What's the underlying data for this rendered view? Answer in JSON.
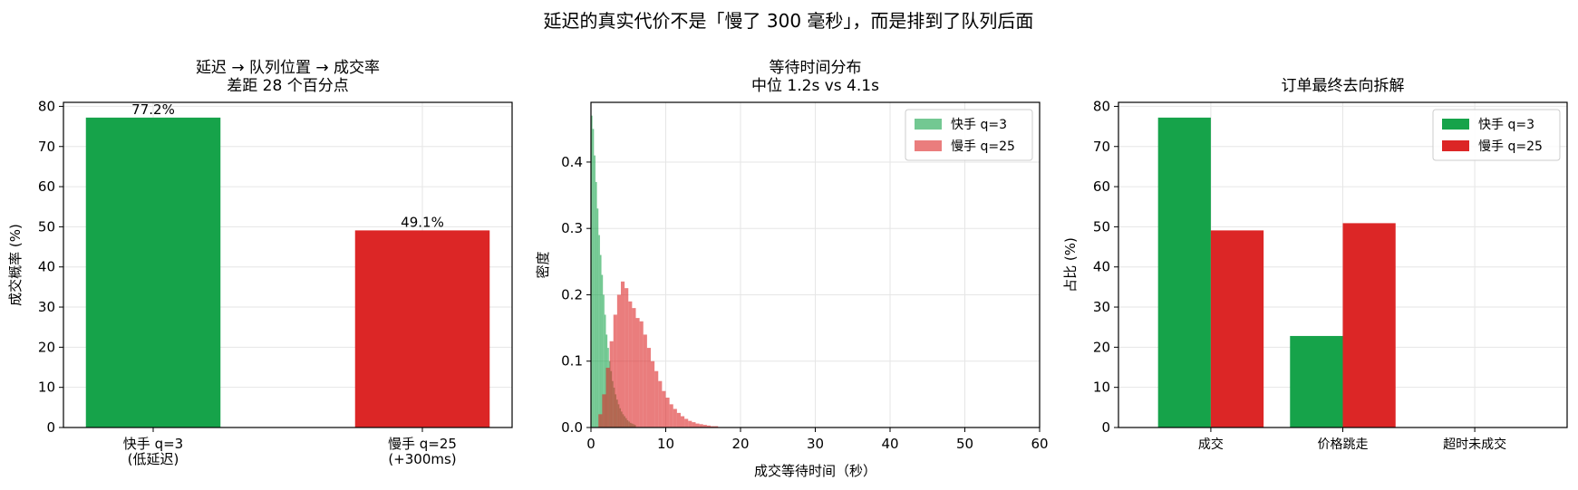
{
  "figure": {
    "suptitle": "延迟的真实代价不是「慢了 300 毫秒」，而是排到了队列后面"
  },
  "chart_data": [
    {
      "type": "bar",
      "title": "延迟 → 队列位置 → 成交率",
      "subtitle": "差距 28 个百分点",
      "xlabel": "",
      "ylabel": "成交概率 (%)",
      "ylim": [
        0,
        81
      ],
      "yticks": [
        0,
        10,
        20,
        30,
        40,
        50,
        60,
        70,
        80
      ],
      "categories": [
        [
          "快手 q=3",
          "(低延迟)"
        ],
        [
          "慢手 q=25",
          "(+300ms)"
        ]
      ],
      "values": [
        77.2,
        49.1
      ],
      "data_labels": [
        "77.2%",
        "49.1%"
      ],
      "colors": [
        "#16a34a",
        "#dc2626"
      ],
      "grid": true
    },
    {
      "type": "histogram",
      "title": "等待时间分布",
      "subtitle": "中位 1.2s vs 4.1s",
      "xlabel": "成交等待时间（秒）",
      "ylabel": "密度",
      "xlim": [
        0,
        60
      ],
      "ylim": [
        0,
        0.49
      ],
      "xticks": [
        0,
        10,
        20,
        30,
        40,
        50,
        60
      ],
      "yticks": [
        "0.0",
        "0.1",
        "0.2",
        "0.3",
        "0.4"
      ],
      "legend_position": "top-right",
      "grid": true,
      "series": [
        {
          "name": "快手 q=3",
          "color": "#16a34a",
          "opacity": 0.6,
          "bin_width": 0.2,
          "density": [
            0.47,
            0.45,
            0.41,
            0.37,
            0.33,
            0.29,
            0.26,
            0.23,
            0.2,
            0.17,
            0.14,
            0.12,
            0.1,
            0.085,
            0.07,
            0.06,
            0.05,
            0.042,
            0.035,
            0.029,
            0.024,
            0.02,
            0.017,
            0.014,
            0.011,
            0.009,
            0.007,
            0.006,
            0.005,
            0.004
          ]
        },
        {
          "name": "慢手 q=25",
          "color": "#dc2626",
          "opacity": 0.6,
          "bin_width": 0.5,
          "x_start": 1.0,
          "density": [
            0.02,
            0.05,
            0.09,
            0.13,
            0.17,
            0.2,
            0.22,
            0.21,
            0.19,
            0.18,
            0.165,
            0.16,
            0.14,
            0.12,
            0.1,
            0.085,
            0.07,
            0.055,
            0.045,
            0.035,
            0.028,
            0.022,
            0.017,
            0.013,
            0.01,
            0.008,
            0.006,
            0.005,
            0.004,
            0.003,
            0.002,
            0.002
          ]
        }
      ]
    },
    {
      "type": "bar",
      "title": "订单最终去向拆解",
      "xlabel": "",
      "ylabel": "占比 (%)",
      "ylim": [
        0,
        81
      ],
      "yticks": [
        0,
        10,
        20,
        30,
        40,
        50,
        60,
        70,
        80
      ],
      "categories": [
        "成交",
        "价格跳走",
        "超时未成交"
      ],
      "legend_position": "top-right",
      "grid": true,
      "series": [
        {
          "name": "快手 q=3",
          "color": "#16a34a",
          "values": [
            77.2,
            22.8,
            0
          ]
        },
        {
          "name": "慢手 q=25",
          "color": "#dc2626",
          "values": [
            49.1,
            50.9,
            0
          ]
        }
      ]
    }
  ]
}
